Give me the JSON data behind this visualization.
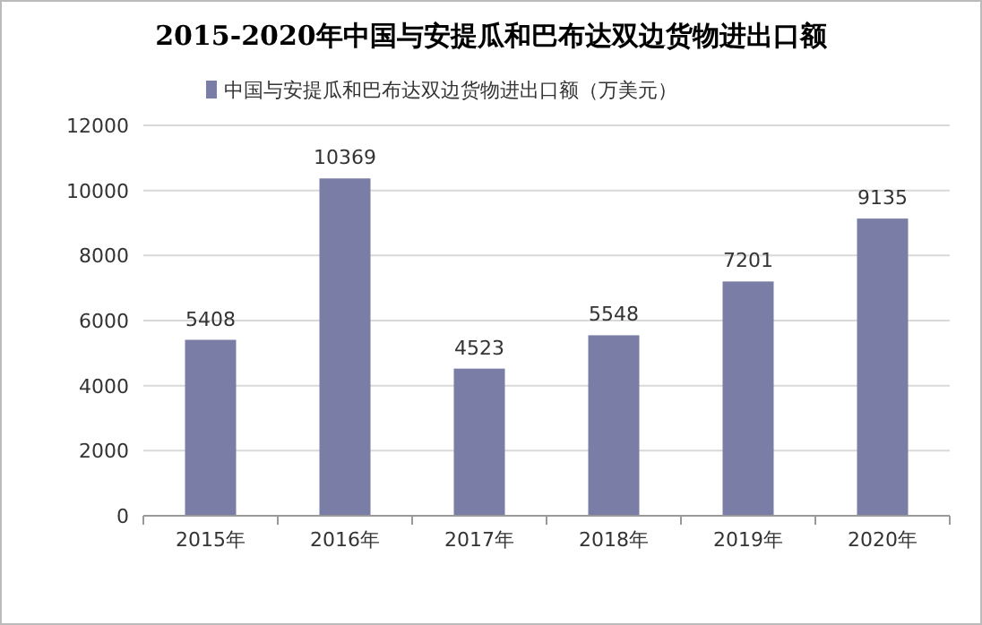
{
  "chart_data": {
    "type": "bar",
    "title": "2015-2020年中国与安提瓜和巴布达双边货物进出口额",
    "categories": [
      "2015年",
      "2016年",
      "2017年",
      "2018年",
      "2019年",
      "2020年"
    ],
    "series": [
      {
        "name": "中国与安提瓜和巴布达双边货物进出口额（万美元）",
        "color": "#7a7ea6",
        "values": [
          5408,
          10369,
          4523,
          5548,
          7201,
          9135
        ]
      }
    ],
    "ylim": [
      0,
      12000
    ],
    "yticks": [
      0,
      2000,
      4000,
      6000,
      8000,
      10000,
      12000
    ],
    "grid": "y",
    "legend": "top",
    "data_labels": true
  }
}
